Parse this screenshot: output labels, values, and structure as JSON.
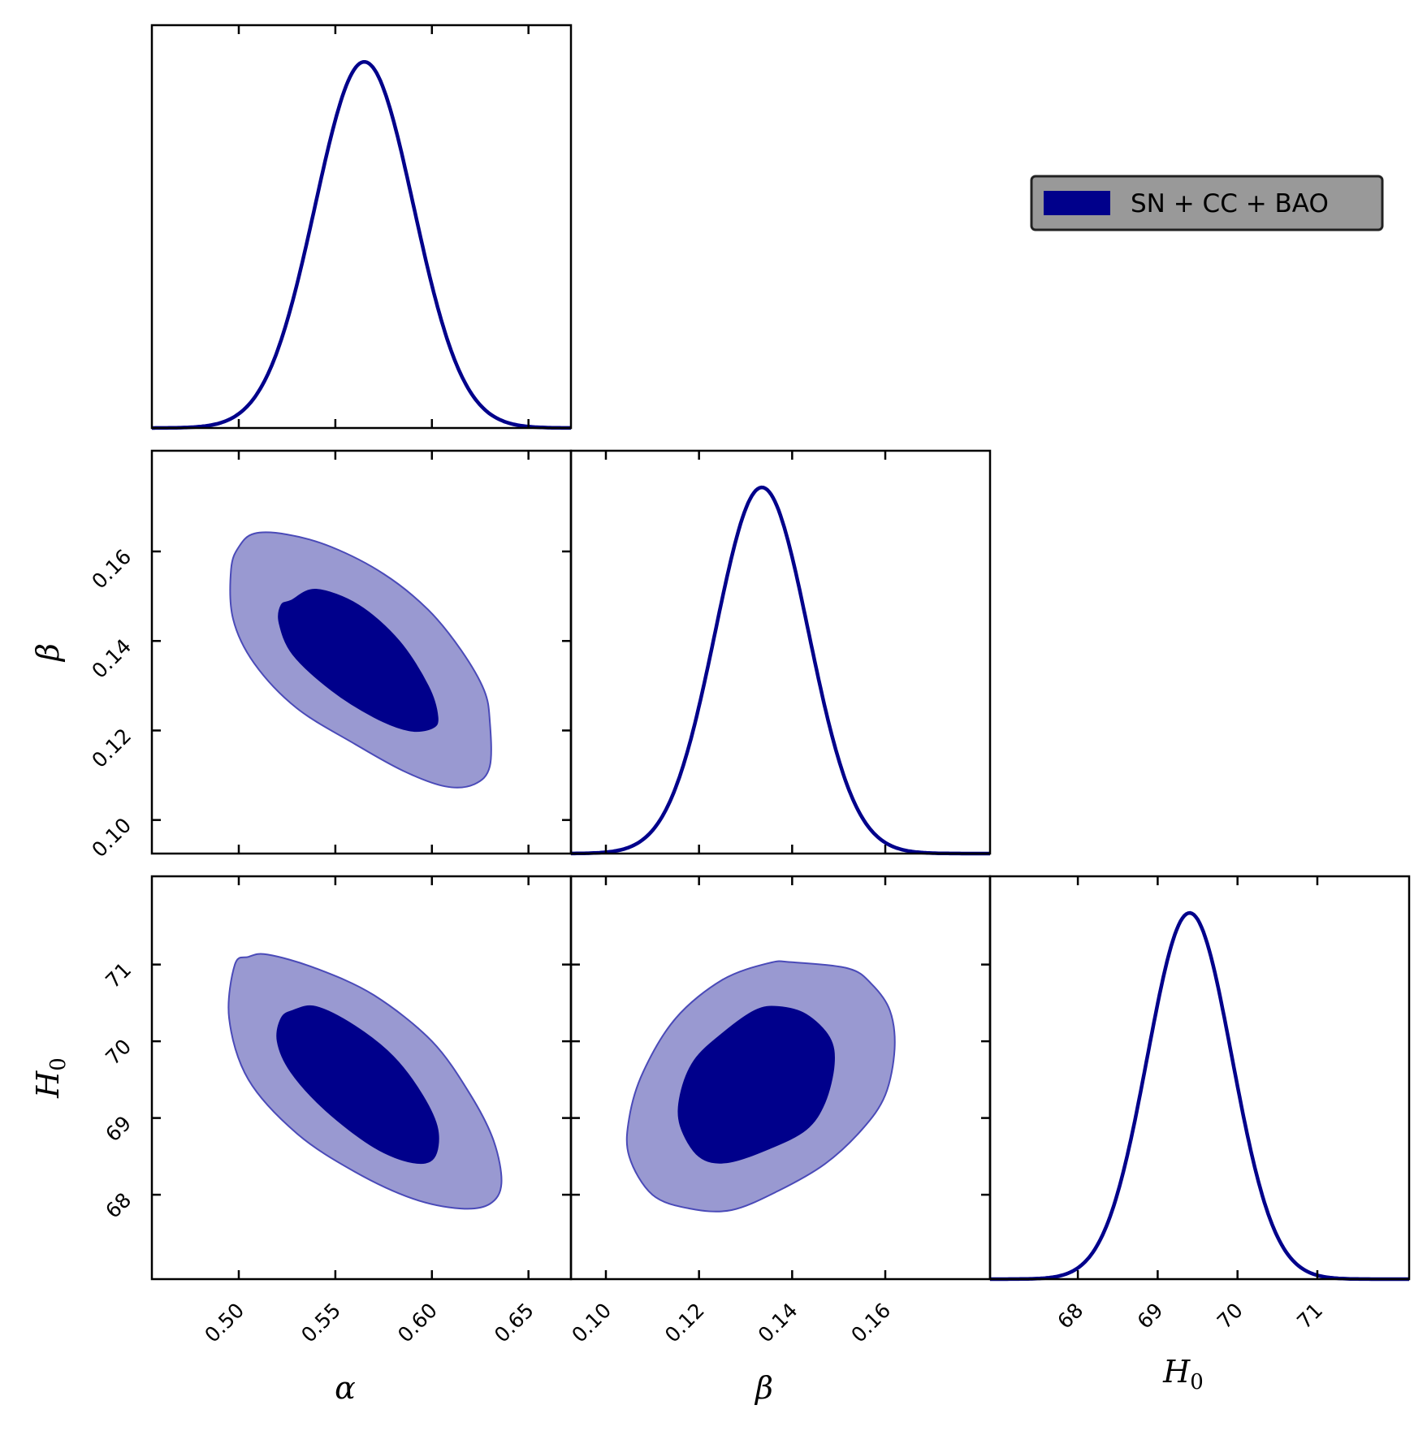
{
  "chart_data": {
    "type": "corner",
    "colors": {
      "line": "#00008B",
      "fill_inner": "#00008B",
      "fill_outer": "#9999d1",
      "frame": "#000000",
      "legend_bg": "#999999"
    },
    "legend": {
      "label": "SN + CC + BAO",
      "position": "top-right"
    },
    "parameters": [
      {
        "key": "alpha",
        "symbol": "α",
        "sub": "",
        "range": [
          0.455,
          0.672
        ],
        "ticks": [
          0.5,
          0.55,
          0.6,
          0.65
        ],
        "tick_labels": [
          "0.50",
          "0.55",
          "0.60",
          "0.65"
        ],
        "mean": 0.565,
        "sigma": 0.0255
      },
      {
        "key": "beta",
        "symbol": "β",
        "sub": "",
        "range": [
          0.0925,
          0.1825
        ],
        "ticks": [
          0.1,
          0.12,
          0.14,
          0.16
        ],
        "tick_labels": [
          "0.10",
          "0.12",
          "0.14",
          "0.16"
        ],
        "mean": 0.1335,
        "sigma": 0.01
      },
      {
        "key": "H0",
        "symbol": "H",
        "sub": "0",
        "range": [
          66.9,
          72.15
        ],
        "ticks": [
          68,
          69,
          70,
          71
        ],
        "tick_labels": [
          "68",
          "69",
          "70",
          "71"
        ],
        "mean": 69.4,
        "sigma": 0.53
      }
    ],
    "marginals": [
      {
        "param": "alpha",
        "peak_density": 1.0,
        "ylim": [
          0,
          1.1
        ]
      },
      {
        "param": "beta",
        "peak_density": 1.0,
        "ylim": [
          0,
          1.1
        ]
      },
      {
        "param": "H0",
        "peak_density": 1.0,
        "ylim": [
          0,
          1.1
        ]
      }
    ],
    "contours": [
      {
        "x": "alpha",
        "y": "beta",
        "outer": [
          [
            0.508,
            0.164
          ],
          [
            0.525,
            0.1638
          ],
          [
            0.548,
            0.161
          ],
          [
            0.575,
            0.155
          ],
          [
            0.598,
            0.147
          ],
          [
            0.615,
            0.138
          ],
          [
            0.627,
            0.129
          ],
          [
            0.63,
            0.122
          ],
          [
            0.63,
            0.112
          ],
          [
            0.622,
            0.108
          ],
          [
            0.607,
            0.1075
          ],
          [
            0.585,
            0.111
          ],
          [
            0.56,
            0.117
          ],
          [
            0.53,
            0.125
          ],
          [
            0.508,
            0.135
          ],
          [
            0.497,
            0.145
          ],
          [
            0.496,
            0.156
          ],
          [
            0.5,
            0.161
          ]
        ],
        "inner": [
          [
            0.527,
            0.149
          ],
          [
            0.54,
            0.1515
          ],
          [
            0.562,
            0.148
          ],
          [
            0.583,
            0.14
          ],
          [
            0.598,
            0.13
          ],
          [
            0.603,
            0.123
          ],
          [
            0.6,
            0.1205
          ],
          [
            0.588,
            0.12
          ],
          [
            0.57,
            0.123
          ],
          [
            0.548,
            0.129
          ],
          [
            0.528,
            0.137
          ],
          [
            0.521,
            0.144
          ],
          [
            0.522,
            0.148
          ]
        ]
      },
      {
        "x": "alpha",
        "y": "H0",
        "outer": [
          [
            0.505,
            71.1
          ],
          [
            0.515,
            71.13
          ],
          [
            0.54,
            70.95
          ],
          [
            0.57,
            70.6
          ],
          [
            0.6,
            70.0
          ],
          [
            0.62,
            69.3
          ],
          [
            0.632,
            68.7
          ],
          [
            0.636,
            68.15
          ],
          [
            0.63,
            67.88
          ],
          [
            0.615,
            67.82
          ],
          [
            0.59,
            67.95
          ],
          [
            0.56,
            68.3
          ],
          [
            0.53,
            68.8
          ],
          [
            0.505,
            69.5
          ],
          [
            0.495,
            70.3
          ],
          [
            0.498,
            71.0
          ]
        ],
        "inner": [
          [
            0.528,
            70.4
          ],
          [
            0.54,
            70.45
          ],
          [
            0.56,
            70.2
          ],
          [
            0.58,
            69.8
          ],
          [
            0.595,
            69.3
          ],
          [
            0.603,
            68.85
          ],
          [
            0.601,
            68.48
          ],
          [
            0.59,
            68.42
          ],
          [
            0.57,
            68.62
          ],
          [
            0.545,
            69.1
          ],
          [
            0.527,
            69.6
          ],
          [
            0.52,
            70.0
          ],
          [
            0.522,
            70.3
          ]
        ]
      },
      {
        "x": "beta",
        "y": "H0",
        "outer": [
          [
            0.14,
            71.03
          ],
          [
            0.152,
            70.95
          ],
          [
            0.157,
            70.75
          ],
          [
            0.161,
            70.4
          ],
          [
            0.162,
            69.9
          ],
          [
            0.16,
            69.3
          ],
          [
            0.155,
            68.85
          ],
          [
            0.147,
            68.4
          ],
          [
            0.137,
            68.05
          ],
          [
            0.127,
            67.8
          ],
          [
            0.118,
            67.82
          ],
          [
            0.11,
            68.0
          ],
          [
            0.105,
            68.5
          ],
          [
            0.105,
            69.0
          ],
          [
            0.108,
            69.6
          ],
          [
            0.115,
            70.3
          ],
          [
            0.125,
            70.8
          ],
          [
            0.135,
            71.02
          ]
        ],
        "inner": [
          [
            0.137,
            70.45
          ],
          [
            0.143,
            70.35
          ],
          [
            0.148,
            70.05
          ],
          [
            0.149,
            69.7
          ],
          [
            0.147,
            69.2
          ],
          [
            0.143,
            68.85
          ],
          [
            0.135,
            68.6
          ],
          [
            0.126,
            68.42
          ],
          [
            0.12,
            68.5
          ],
          [
            0.116,
            68.9
          ],
          [
            0.116,
            69.3
          ],
          [
            0.119,
            69.75
          ],
          [
            0.125,
            70.1
          ],
          [
            0.132,
            70.4
          ]
        ]
      }
    ]
  }
}
